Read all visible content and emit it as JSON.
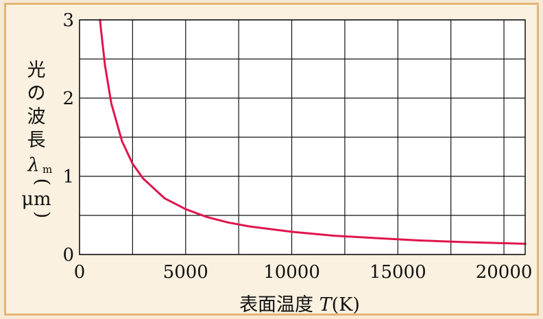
{
  "chart_data": {
    "type": "line",
    "xlabel": "表面温度 T(K)",
    "xlabel_main": "表面温度 ",
    "xlabel_var": "T",
    "xlabel_unit": "(K)",
    "ylabel": "光の波長λm(μm)",
    "ylabel_chars": [
      "光",
      "の",
      "波",
      "長"
    ],
    "ylabel_symbol": "λ",
    "ylabel_sub": "m",
    "ylabel_unit": "μm",
    "xlim": [
      0,
      21000
    ],
    "ylim": [
      0,
      3
    ],
    "x_ticks": [
      0,
      5000,
      10000,
      15000,
      20000
    ],
    "y_ticks": [
      0,
      1,
      2,
      3
    ],
    "x_tick_labels": [
      "0",
      "5000",
      "10000",
      "15000",
      "20000"
    ],
    "y_tick_labels": [
      "0",
      "1",
      "2",
      "3"
    ],
    "x_grid": [
      0,
      2500,
      5000,
      7500,
      10000,
      12500,
      15000,
      17500,
      20000
    ],
    "y_grid": [
      0,
      0.5,
      1,
      1.5,
      2,
      2.5,
      3
    ],
    "grid": true,
    "series": [
      {
        "color": "#e0144c",
        "x": [
          966,
          1000,
          1200,
          1500,
          2000,
          2500,
          3000,
          4000,
          5000,
          6000,
          7000,
          8000,
          10000,
          12000,
          14000,
          16000,
          18000,
          20000,
          21000
        ],
        "y": [
          3.0,
          2.9,
          2.42,
          1.93,
          1.45,
          1.16,
          0.97,
          0.72,
          0.58,
          0.48,
          0.41,
          0.36,
          0.29,
          0.24,
          0.21,
          0.18,
          0.16,
          0.145,
          0.138
        ]
      }
    ]
  }
}
